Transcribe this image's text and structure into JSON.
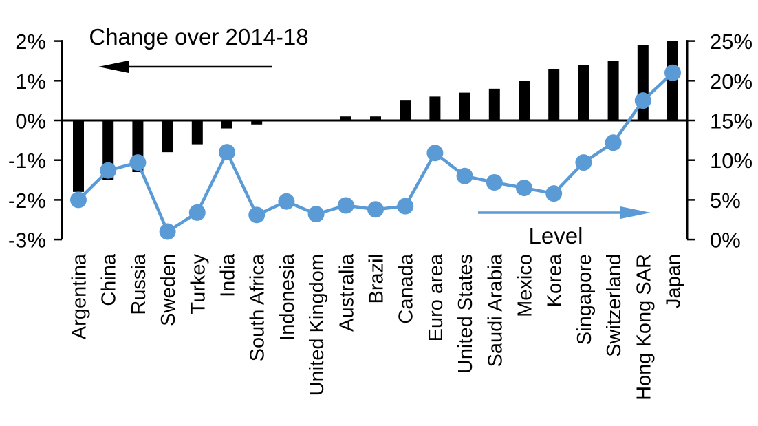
{
  "chart_data": {
    "type": "bar+line",
    "categories": [
      "Argentina",
      "China",
      "Russia",
      "Sweden",
      "Turkey",
      "India",
      "South Africa",
      "Indonesia",
      "United Kingdom",
      "Australia",
      "Brazil",
      "Canada",
      "Euro area",
      "United States",
      "Saudi Arabia",
      "Mexico",
      "Korea",
      "Singapore",
      "Switzerland",
      "Hong Kong SAR",
      "Japan"
    ],
    "series": [
      {
        "name": "Change over 2014-18",
        "type": "bar",
        "axis": "left",
        "unit": "%",
        "color": "#000000",
        "values": [
          -1.8,
          -1.5,
          -1.3,
          -0.8,
          -0.6,
          -0.2,
          -0.1,
          0,
          0,
          0.1,
          0.1,
          0.5,
          0.6,
          0.7,
          0.8,
          1.0,
          1.3,
          1.4,
          1.5,
          1.9,
          2.0
        ]
      },
      {
        "name": "Level",
        "type": "line",
        "axis": "right",
        "unit": "%",
        "color": "#5B9BD5",
        "values": [
          5.0,
          8.7,
          9.7,
          1.0,
          3.4,
          11.0,
          3.1,
          4.8,
          3.2,
          4.3,
          3.8,
          4.2,
          10.9,
          8.0,
          7.2,
          6.5,
          5.8,
          9.7,
          12.2,
          17.5,
          21.0
        ]
      }
    ],
    "left_axis": {
      "range": [
        -3,
        2
      ],
      "tick_values": [
        2,
        1,
        0,
        -1,
        -2,
        -3
      ],
      "tick_labels": [
        "2%",
        "1%",
        "0%",
        "-1%",
        "-2%",
        "-3%"
      ]
    },
    "right_axis": {
      "range": [
        0,
        25
      ],
      "tick_values": [
        25,
        20,
        15,
        10,
        5,
        0
      ],
      "tick_labels": [
        "25%",
        "20%",
        "15%",
        "10%",
        "5%",
        "0%"
      ]
    },
    "annotations": [
      {
        "text": "Change over 2014-18",
        "arrow_direction": "left",
        "color": "#000000"
      },
      {
        "text": "Level",
        "arrow_direction": "right",
        "color": "#5B9BD5"
      }
    ],
    "grid": "off",
    "legend_position": "in-plot annotations",
    "background": "#FFFFFF"
  }
}
